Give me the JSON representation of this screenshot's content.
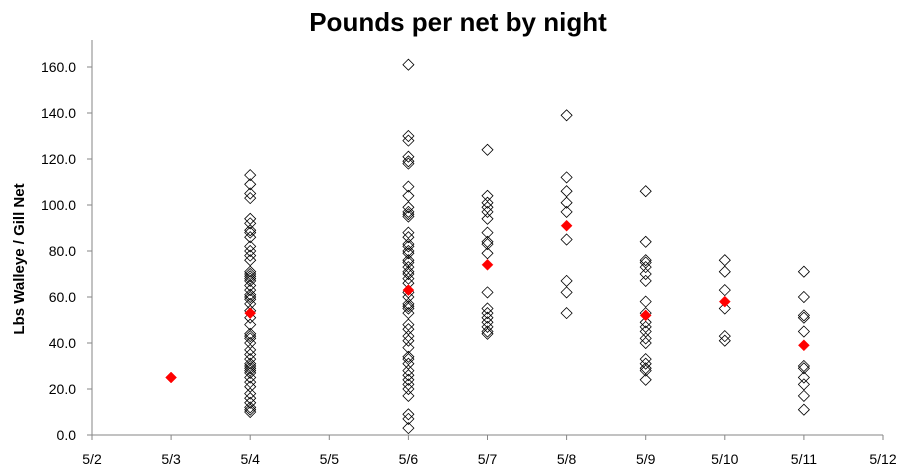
{
  "chart_data": {
    "type": "scatter",
    "title": "Pounds per net by night",
    "xlabel": "",
    "ylabel": "Lbs Walleye / Gill Net",
    "x_ticks": [
      "5/2",
      "5/3",
      "5/4",
      "5/5",
      "5/6",
      "5/7",
      "5/8",
      "5/9",
      "5/10",
      "5/11",
      "5/12"
    ],
    "xlim": [
      "5/2",
      "5/12"
    ],
    "y_ticks": [
      "0.0",
      "20.0",
      "40.0",
      "60.0",
      "80.0",
      "100.0",
      "120.0",
      "140.0",
      "160.0"
    ],
    "ylim": [
      0,
      170
    ],
    "grid": false,
    "legend": "none",
    "series": [
      {
        "marker": "open-diamond",
        "color": "#000000",
        "points": [
          {
            "x": "5/4",
            "y": [
              113,
              109,
              105,
              103,
              94,
              92,
              89,
              88,
              86,
              82,
              80,
              78,
              76,
              71,
              70,
              69,
              68,
              67,
              65,
              63,
              61,
              60,
              59,
              57,
              54,
              51,
              48,
              44,
              43,
              42,
              40,
              37,
              35,
              33,
              31,
              30,
              29,
              28,
              27,
              25,
              23,
              21,
              18,
              16,
              14,
              12,
              11,
              10
            ]
          },
          {
            "x": "5/6",
            "y": [
              161,
              130,
              128,
              121,
              119,
              118,
              108,
              104,
              99,
              97,
              96,
              95,
              88,
              86,
              83,
              82,
              80,
              79,
              76,
              75,
              73,
              71,
              70,
              68,
              66,
              62,
              60,
              57,
              56,
              55,
              53,
              48,
              46,
              43,
              41,
              38,
              34,
              33,
              31,
              28,
              26,
              24,
              22,
              20,
              17,
              9,
              7,
              3
            ]
          },
          {
            "x": "5/7",
            "y": [
              124,
              104,
              101,
              99,
              97,
              94,
              88,
              84,
              83,
              79,
              62,
              55,
              53,
              51,
              49,
              47,
              45,
              44
            ]
          },
          {
            "x": "5/8",
            "y": [
              139,
              112,
              106,
              101,
              97,
              85,
              67,
              62,
              53
            ]
          },
          {
            "x": "5/9",
            "y": [
              106,
              84,
              76,
              75,
              73,
              70,
              67,
              58,
              53,
              49,
              47,
              45,
              42,
              40,
              33,
              31,
              29,
              28,
              24
            ]
          },
          {
            "x": "5/10",
            "y": [
              76,
              71,
              63,
              55,
              43,
              41
            ]
          },
          {
            "x": "5/11",
            "y": [
              71,
              60,
              52,
              51,
              45,
              30,
              29,
              25,
              22,
              17,
              11
            ]
          }
        ]
      },
      {
        "marker": "filled-diamond",
        "color": "#ff0000",
        "points": [
          {
            "x": "5/3",
            "y": [
              25
            ]
          },
          {
            "x": "5/4",
            "y": [
              53
            ]
          },
          {
            "x": "5/6",
            "y": [
              63
            ]
          },
          {
            "x": "5/7",
            "y": [
              74
            ]
          },
          {
            "x": "5/8",
            "y": [
              91
            ]
          },
          {
            "x": "5/9",
            "y": [
              52
            ]
          },
          {
            "x": "5/10",
            "y": [
              58
            ]
          },
          {
            "x": "5/11",
            "y": [
              39
            ]
          }
        ]
      }
    ]
  }
}
